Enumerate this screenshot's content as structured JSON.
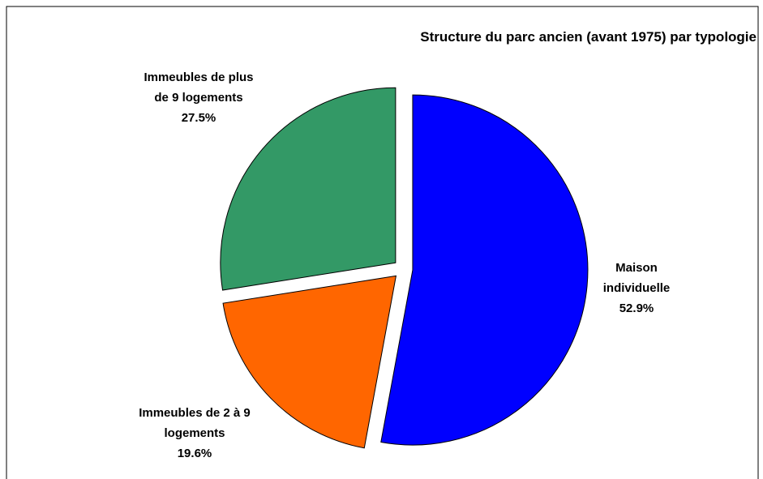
{
  "chart_data": {
    "type": "pie",
    "title": "Structure du parc ancien (avant 1975) par typologie",
    "categories": [
      "Maison individuelle",
      "Immeubles de 2 à 9 logements",
      "Immeubles de plus de 9 logements"
    ],
    "values": [
      52.9,
      19.6,
      27.5
    ],
    "value_labels": [
      "52.9%",
      "19.6%",
      "27.5%"
    ],
    "colors": [
      "#0000ff",
      "#ff6600",
      "#339966"
    ]
  }
}
